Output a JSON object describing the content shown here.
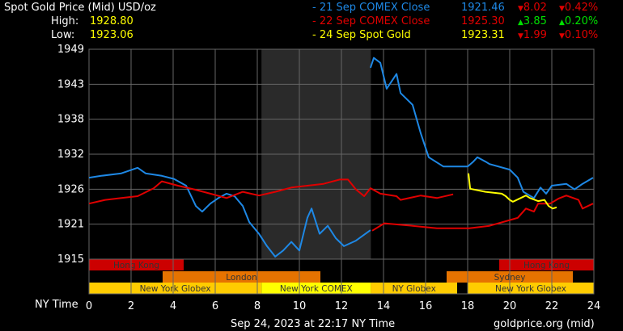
{
  "header": {
    "title": "Spot Gold Price (Mid) USD/oz",
    "high_label": "High:",
    "high": "1928.80",
    "low_label": "Low:",
    "low": "1923.06"
  },
  "legend": [
    {
      "label": "- 21 Sep COMEX Close",
      "price": "1921.46",
      "change": "8.02",
      "pct": "0.42%",
      "dir": "down",
      "color": "#1e88e5"
    },
    {
      "label": "- 22 Sep COMEX Close",
      "price": "1925.30",
      "change": "3.85",
      "pct": "0.20%",
      "dir": "up",
      "color": "#e00000"
    },
    {
      "label": "- 24 Sep Spot Gold",
      "price": "1923.31",
      "change": "1.99",
      "pct": "0.10%",
      "dir": "down",
      "color": "#ffff00"
    }
  ],
  "colors": {
    "up": "#00e000",
    "down": "#e00000",
    "high_low": "#ffff00",
    "grid": "#666666",
    "comex_shade": "#2a2a2a"
  },
  "footer": {
    "timestamp": "Sep 24, 2023 at 22:17 NY Time",
    "source": "goldprice.org (mid)"
  },
  "chart_data": {
    "type": "line",
    "xlabel": "NY Time",
    "xlim": [
      0,
      24
    ],
    "ylim": [
      1915,
      1949
    ],
    "x_ticks": [
      "0",
      "2",
      "4",
      "6",
      "8",
      "10",
      "12",
      "14",
      "16",
      "18",
      "20",
      "22",
      "24"
    ],
    "y_ticks": [
      "1949",
      "1943",
      "1938",
      "1932",
      "1926",
      "1921",
      "1915"
    ],
    "grid": true,
    "shaded_range": [
      8.2,
      13.4
    ],
    "sessions": [
      {
        "name": "Hong Kong",
        "start": 0,
        "end": 4.5,
        "row": 0,
        "color": "#cc0000"
      },
      {
        "name": "Hong Kong",
        "start": 19.5,
        "end": 24,
        "row": 0,
        "color": "#cc0000"
      },
      {
        "name": "London",
        "start": 3.5,
        "end": 11,
        "row": 1,
        "color": "#e67300"
      },
      {
        "name": "Sydney",
        "start": 17,
        "end": 23,
        "row": 1,
        "color": "#e67300"
      },
      {
        "name": "New York Globex",
        "start": 0,
        "end": 8.2,
        "row": 2,
        "color": "#ffcc00"
      },
      {
        "name": "New York COMEX",
        "start": 8.2,
        "end": 13.4,
        "row": 2,
        "color": "#ffff00"
      },
      {
        "name": "NY Globex",
        "start": 13.4,
        "end": 17.5,
        "row": 2,
        "color": "#ffcc00"
      },
      {
        "name": "New York Globex",
        "start": 18,
        "end": 24,
        "row": 2,
        "color": "#ffcc00"
      }
    ],
    "series": [
      {
        "color": "#1e88e5",
        "segments": [
          [
            [
              0,
              1928.2
            ],
            [
              0.58,
              1928.5
            ],
            [
              1.54,
              1928.9
            ],
            [
              2.31,
              1929.8
            ],
            [
              2.69,
              1928.9
            ],
            [
              3.46,
              1928.5
            ],
            [
              4.04,
              1928.0
            ],
            [
              4.62,
              1926.9
            ],
            [
              5.08,
              1923.6
            ],
            [
              5.38,
              1922.7
            ],
            [
              5.77,
              1924.0
            ],
            [
              6.15,
              1924.9
            ],
            [
              6.54,
              1925.6
            ],
            [
              6.92,
              1925.2
            ],
            [
              7.31,
              1923.6
            ],
            [
              7.62,
              1921.0
            ],
            [
              8.08,
              1919.1
            ],
            [
              8.46,
              1917.1
            ],
            [
              8.85,
              1915.4
            ],
            [
              9.23,
              1916.4
            ],
            [
              9.62,
              1917.8
            ],
            [
              10,
              1916.4
            ],
            [
              10.38,
              1921.7
            ],
            [
              10.58,
              1923.2
            ],
            [
              10.96,
              1919.1
            ],
            [
              11.35,
              1920.4
            ],
            [
              11.73,
              1918.4
            ],
            [
              12.12,
              1917.1
            ],
            [
              12.69,
              1918.0
            ],
            [
              13.38,
              1919.7
            ]
          ],
          [
            [
              13.38,
              1946.0
            ],
            [
              13.54,
              1947.6
            ],
            [
              13.85,
              1946.8
            ],
            [
              14.15,
              1942.6
            ],
            [
              14.62,
              1945.0
            ],
            [
              14.81,
              1941.9
            ],
            [
              15.38,
              1940.0
            ],
            [
              15.77,
              1935.4
            ],
            [
              16.15,
              1931.5
            ],
            [
              16.85,
              1930.0
            ],
            [
              18,
              1930.0
            ],
            [
              18.27,
              1930.8
            ],
            [
              18.46,
              1931.5
            ],
            [
              18.85,
              1930.8
            ],
            [
              19.04,
              1930.4
            ],
            [
              20,
              1929.5
            ],
            [
              20.38,
              1928.2
            ],
            [
              20.65,
              1925.9
            ],
            [
              21.15,
              1924.9
            ],
            [
              21.46,
              1926.6
            ],
            [
              21.73,
              1925.6
            ],
            [
              22,
              1926.9
            ],
            [
              22.69,
              1927.2
            ],
            [
              23.08,
              1926.3
            ],
            [
              23.46,
              1927.2
            ],
            [
              23.96,
              1928.2
            ]
          ]
        ]
      },
      {
        "color": "#e00000",
        "segments": [
          [
            [
              0,
              1924.0
            ],
            [
              0.77,
              1924.6
            ],
            [
              1.54,
              1924.9
            ],
            [
              2.31,
              1925.2
            ],
            [
              3.08,
              1926.5
            ],
            [
              3.46,
              1927.6
            ],
            [
              4.23,
              1926.9
            ],
            [
              5,
              1926.3
            ],
            [
              5.77,
              1925.6
            ],
            [
              6.54,
              1924.9
            ],
            [
              7.31,
              1925.9
            ],
            [
              8.08,
              1925.3
            ],
            [
              8.85,
              1925.9
            ],
            [
              9.62,
              1926.6
            ],
            [
              10.38,
              1926.9
            ],
            [
              11.15,
              1927.2
            ],
            [
              11.92,
              1927.9
            ],
            [
              12.31,
              1927.9
            ],
            [
              12.69,
              1926.3
            ],
            [
              13.08,
              1925.2
            ],
            [
              13.38,
              1926.5
            ],
            [
              13.85,
              1925.6
            ],
            [
              14.62,
              1925.2
            ],
            [
              14.81,
              1924.6
            ],
            [
              15.77,
              1925.3
            ],
            [
              16.54,
              1924.9
            ],
            [
              17.31,
              1925.5
            ]
          ],
          [
            [
              13.46,
              1919.6
            ],
            [
              14.04,
              1920.8
            ],
            [
              15.38,
              1920.4
            ],
            [
              16.54,
              1920.0
            ],
            [
              18.08,
              1920.0
            ],
            [
              19.04,
              1920.4
            ],
            [
              20.38,
              1921.7
            ],
            [
              20.77,
              1923.2
            ],
            [
              21.15,
              1922.7
            ],
            [
              21.35,
              1924.0
            ],
            [
              21.92,
              1924.0
            ],
            [
              22.31,
              1924.8
            ],
            [
              22.69,
              1925.3
            ],
            [
              23.27,
              1924.6
            ],
            [
              23.46,
              1923.2
            ],
            [
              23.96,
              1924.0
            ]
          ]
        ]
      },
      {
        "color": "#ffff00",
        "segments": [
          [
            [
              18.04,
              1928.9
            ],
            [
              18.12,
              1926.4
            ],
            [
              18.85,
              1925.9
            ],
            [
              19.62,
              1925.6
            ],
            [
              19.81,
              1925.2
            ],
            [
              20,
              1924.6
            ],
            [
              20.15,
              1924.3
            ],
            [
              20.77,
              1925.3
            ],
            [
              20.96,
              1924.9
            ],
            [
              21.35,
              1924.4
            ],
            [
              21.65,
              1924.6
            ],
            [
              21.85,
              1923.6
            ],
            [
              22.04,
              1923.2
            ],
            [
              22.23,
              1923.4
            ]
          ]
        ]
      }
    ]
  }
}
